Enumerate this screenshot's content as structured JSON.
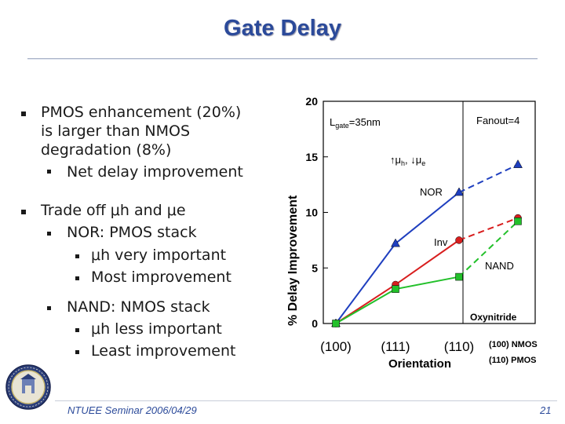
{
  "slide": {
    "title": "Gate Delay",
    "footer": "NTUEE Seminar 2006/04/29",
    "page": "21"
  },
  "bullets": [
    {
      "text": "PMOS enhancement (20%)"
    },
    {
      "text": "is larger than NMOS"
    },
    {
      "text": "degradation (8%)"
    },
    {
      "text": "Net delay improvement"
    },
    {
      "text": "Trade off μh and μe"
    },
    {
      "text": "NOR: PMOS stack"
    },
    {
      "text": "μh very important"
    },
    {
      "text": "Most improvement"
    },
    {
      "text": "NAND: NMOS stack"
    },
    {
      "text": "μh less important"
    },
    {
      "text": "Least improvement"
    }
  ],
  "chart_data": {
    "type": "line",
    "categories": [
      "(100)",
      "(111)",
      "(110)"
    ],
    "xlabel": "Orientation",
    "ylabel": "% Delay Improvement",
    "ylim": [
      0,
      20
    ],
    "yticks": [
      "0",
      "5",
      "10",
      "15",
      "20"
    ],
    "series": [
      {
        "name": "NOR",
        "color": "#1f3fbf",
        "marker": "triangle",
        "values": [
          0,
          7.2,
          11.8
        ],
        "projected": 14.3
      },
      {
        "name": "Inv",
        "color": "#d81e1e",
        "marker": "circle",
        "values": [
          0,
          3.5,
          7.5
        ],
        "projected": 9.5
      },
      {
        "name": "NAND",
        "color": "#22c02a",
        "marker": "square",
        "values": [
          0,
          3.1,
          4.2
        ],
        "projected": 9.2
      }
    ],
    "annotations": {
      "lgate": "L",
      "lgate_sub": "gate",
      "lgate_val": "=35nm",
      "fanout": "Fanout=4",
      "mobility_up": "↑μ",
      "mobility_up_sub": "h",
      "mobility_sep": ", ",
      "mobility_down": "↓μ",
      "mobility_down_sub": "e",
      "nor": "NOR",
      "inv": "Inv",
      "nand": "NAND",
      "oxynitride": "Oxynitride",
      "nmos_orient": "(100) NMOS",
      "pmos_orient": "(110) PMOS"
    }
  }
}
